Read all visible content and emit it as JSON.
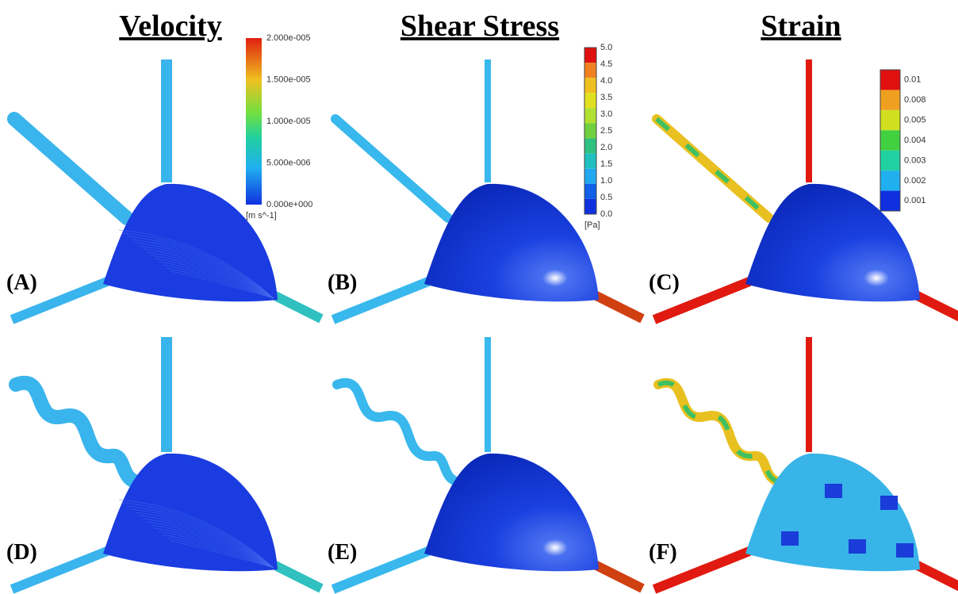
{
  "columns": [
    {
      "title": "Velocity",
      "colorbar": {
        "labels": [
          "2.000e-005",
          "1.500e-005",
          "1.000e-005",
          "5.000e-006",
          "0.000e+000"
        ],
        "unit": "[m s^-1]"
      }
    },
    {
      "title": "Shear Stress",
      "colorbar": {
        "labels": [
          "5.0",
          "4.5",
          "4.0",
          "3.5",
          "3.0",
          "2.5",
          "2.0",
          "1.5",
          "1.0",
          "0.5",
          "0.0"
        ],
        "unit": "[Pa]"
      }
    },
    {
      "title": "Strain",
      "colorbar": {
        "labels": [
          "0.01",
          "0.008",
          "0.005",
          "0.004",
          "0.003",
          "0.002",
          "0.001"
        ]
      }
    }
  ],
  "panels": [
    "(A)",
    "(B)",
    "(C)",
    "(D)",
    "(E)",
    "(F)"
  ]
}
